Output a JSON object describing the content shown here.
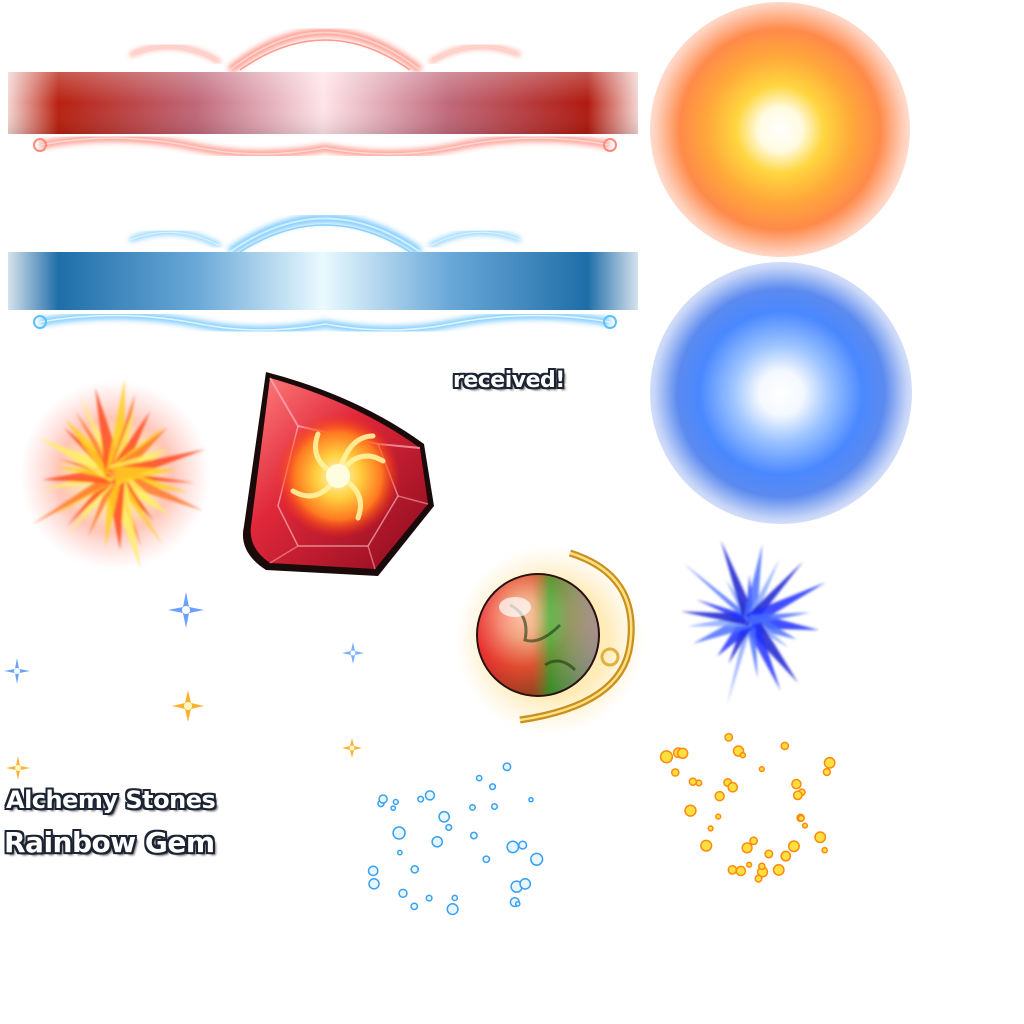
{
  "labels": {
    "received": "received!",
    "alchemy_stones": "Alchemy Stones",
    "rainbow_gem": "Rainbow Gem"
  },
  "assets": {
    "banner_red": "red-ornate-banner",
    "banner_blue": "blue-ornate-banner",
    "glow_orange": "orange-glow-orb",
    "glow_blue": "blue-glow-orb",
    "burst_red": "red-yellow-starburst",
    "burst_blue": "blue-starburst",
    "gem": "red-swirl-gem",
    "orb": "rainbow-orb",
    "particles_blue": "blue-particles",
    "particles_gold": "gold-particles"
  },
  "colors": {
    "banner_red_dark": "#b01a10",
    "banner_red_light": "#ffe4ea",
    "banner_blue_dark": "#1f6ea8",
    "banner_blue_light": "#eafaff",
    "glow_orange": "#ff9a2e",
    "glow_blue": "#3a7dff",
    "text_outline": "#1c2433",
    "text_fill": "#ffffff"
  }
}
